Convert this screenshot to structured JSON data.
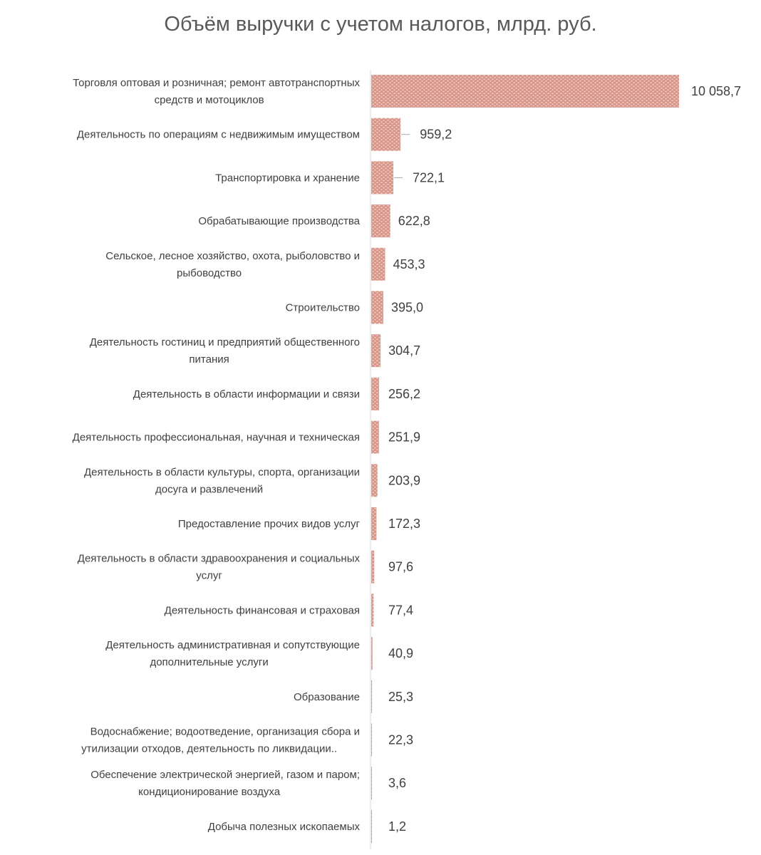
{
  "chart_data": {
    "type": "bar",
    "orientation": "horizontal",
    "title": "Объём выручки с учетом налогов, млрд. руб.",
    "xlabel": "",
    "ylabel": "",
    "grid": false,
    "legend": "none",
    "bar_color": "#d9968a",
    "categories": [
      "Торговля оптовая и розничная; ремонт автотранспортных средств и мотоциклов",
      "Деятельность по операциям с недвижимым имуществом",
      "Транспортировка и хранение",
      "Обрабатывающие производства",
      "Сельское, лесное хозяйство, охота, рыболовство и рыбоводство",
      "Строительство",
      "Деятельность гостиниц и предприятий общественного питания",
      "Деятельность в области информации и связи",
      "Деятельность профессиональная, научная и техническая",
      "Деятельность в области культуры, спорта, организации досуга и развлечений",
      "Предоставление прочих видов услуг",
      "Деятельность в области здравоохранения и социальных услуг",
      "Деятельность финансовая и страховая",
      "Деятельность административная и сопутствующие дополнительные услуги",
      "Образование",
      "Водоснабжение; водоотведение, организация сбора и утилизации отходов, деятельность по ликвидации..",
      "Обеспечение электрической энергией, газом и паром; кондиционирование воздуха",
      "Добыча полезных ископаемых"
    ],
    "category_lines": [
      [
        "Торговля оптовая и розничная; ремонт автотранспортных",
        "средств и мотоциклов"
      ],
      [
        "Деятельность по операциям с недвижимым имуществом"
      ],
      [
        "Транспортировка и хранение"
      ],
      [
        "Обрабатывающие производства"
      ],
      [
        "Сельское, лесное хозяйство, охота, рыболовство и",
        "рыбоводство"
      ],
      [
        "Строительство"
      ],
      [
        "Деятельность гостиниц и предприятий общественного",
        "питания"
      ],
      [
        "Деятельность в области информации и связи"
      ],
      [
        "Деятельность профессиональная, научная и техническая"
      ],
      [
        "Деятельность в области культуры, спорта, организации",
        "досуга и развлечений"
      ],
      [
        "Предоставление прочих видов услуг"
      ],
      [
        "Деятельность в области здравоохранения и социальных",
        "услуг"
      ],
      [
        "Деятельность финансовая и страховая"
      ],
      [
        "Деятельность административная и сопутствующие",
        "дополнительные услуги"
      ],
      [
        "Образование"
      ],
      [
        "Водоснабжение; водоотведение, организация сбора и",
        "утилизации отходов, деятельность по ликвидации.."
      ],
      [
        "Обеспечение электрической энергией, газом и паром;",
        "кондиционирование воздуха"
      ],
      [
        "Добыча полезных ископаемых"
      ]
    ],
    "values": [
      10058.7,
      959.2,
      722.1,
      622.8,
      453.3,
      395.0,
      304.7,
      256.2,
      251.9,
      203.9,
      172.3,
      97.6,
      77.4,
      40.9,
      25.3,
      22.3,
      3.6,
      1.2
    ],
    "value_labels": [
      "10 058,7",
      "959,2",
      "722,1",
      "622,8",
      "453,3",
      "395,0",
      "304,7",
      "256,2",
      "251,9",
      "203,9",
      "172,3",
      "97,6",
      "77,4",
      "40,9",
      "25,3",
      "22,3",
      "3,6",
      "1,2"
    ],
    "xlim": [
      0,
      10058.7
    ]
  }
}
